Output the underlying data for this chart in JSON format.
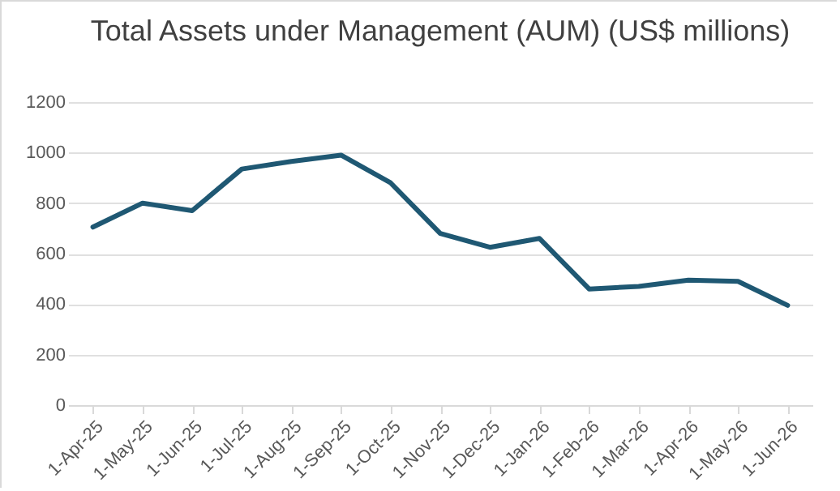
{
  "chart_data": {
    "type": "line",
    "title": "Total Assets under Management (AUM) (US$ millions)",
    "categories": [
      "1-Apr-25",
      "1-May-25",
      "1-Jun-25",
      "1-Jul-25",
      "1-Aug-25",
      "1-Sep-25",
      "1-Oct-25",
      "1-Nov-25",
      "1-Dec-25",
      "1-Jan-26",
      "1-Feb-26",
      "1-Mar-26",
      "1-Apr-26",
      "1-May-26",
      "1-Jun-26"
    ],
    "series": [
      {
        "color": "#1f5873",
        "values": [
          705,
          800,
          770,
          935,
          965,
          990,
          880,
          680,
          625,
          660,
          460,
          470,
          495,
          490,
          395
        ]
      }
    ],
    "ylim": [
      0,
      1200
    ],
    "yticks": [
      0,
      200,
      400,
      600,
      800,
      1000,
      1200
    ],
    "grid": "y",
    "legend": false,
    "marker": "none",
    "line_style": "solid"
  }
}
